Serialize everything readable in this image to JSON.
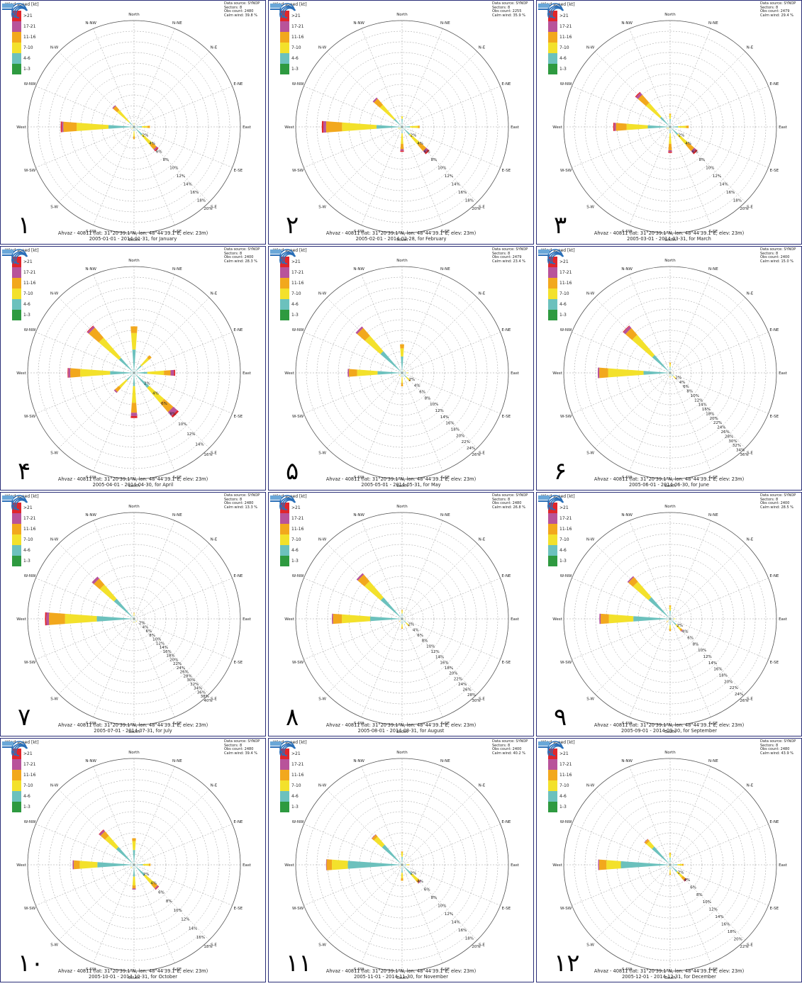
{
  "legend": {
    "title": "Wind speed [kt]",
    "classes": [
      {
        "label": ">21",
        "color": "#e0262b"
      },
      {
        "label": "17-21",
        "color": "#b8539a"
      },
      {
        "label": "11-16",
        "color": "#f2a81d"
      },
      {
        "label": "7-10",
        "color": "#f3e12b"
      },
      {
        "label": "4-6",
        "color": "#6cc1bd"
      },
      {
        "label": "1-3",
        "color": "#2e9a40"
      }
    ]
  },
  "directions": [
    "North",
    "N-NE",
    "N-E",
    "E-NE",
    "East",
    "E-SE",
    "S-E",
    "S-SE",
    "South",
    "S-SW",
    "S-W",
    "W-SW",
    "West",
    "W-NW",
    "N-W",
    "N-NW"
  ],
  "station": "Ahvaz - 40811 (lat: 31°20'39.1\"N, lon: 48°44'39.1\"E, elev: 23m)",
  "data_source_label": "Data source: SYNOP",
  "sectors_label": "Sectors: 8",
  "panels": [
    {
      "num": "١",
      "obs": "Obs count: 2480",
      "calm": "Calm wind: 39.8 %",
      "date": "2005-01-01 - 2014-01-31, for January"
    },
    {
      "num": "٢",
      "obs": "Obs count: 2255",
      "calm": "Calm wind: 35.9 %",
      "date": "2005-02-01 - 2014-02-28, for February"
    },
    {
      "num": "٣",
      "obs": "Obs count: 2479",
      "calm": "Calm wind: 29.4 %",
      "date": "2005-03-01 - 2014-03-31, for March"
    },
    {
      "num": "۴",
      "obs": "Obs count: 2400",
      "calm": "Calm wind: 28.3 %",
      "date": "2005-04-01 - 2014-04-30, for April"
    },
    {
      "num": "۵",
      "obs": "Obs count: 2479",
      "calm": "Calm wind: 23.4 %",
      "date": "2005-05-01 - 2014-05-31, for May"
    },
    {
      "num": "۶",
      "obs": "Obs count: 2400",
      "calm": "Calm wind: 15.0 %",
      "date": "2005-06-01 - 2014-06-30, for June"
    },
    {
      "num": "٧",
      "obs": "Obs count: 2480",
      "calm": "Calm wind: 13.3 %",
      "date": "2005-07-01 - 2014-07-31, for July"
    },
    {
      "num": "٨",
      "obs": "Obs count: 2480",
      "calm": "Calm wind: 26.8 %",
      "date": "2005-08-01 - 2014-08-31, for August"
    },
    {
      "num": "٩",
      "obs": "Obs count: 2400",
      "calm": "Calm wind: 28.5 %",
      "date": "2005-09-01 - 2014-09-30, for September"
    },
    {
      "num": "١٠",
      "obs": "Obs count: 2480",
      "calm": "Calm wind: 39.4 %",
      "date": "2005-10-01 - 2014-10-31, for October"
    },
    {
      "num": "١١",
      "obs": "Obs count: 2400",
      "calm": "Calm wind: 40.2 %",
      "date": "2005-11-01 - 2014-11-30, for November"
    },
    {
      "num": "١٢",
      "obs": "Obs count: 2480",
      "calm": "Calm wind: 43.9 %",
      "date": "2005-12-01 - 2014-12-31, for December"
    }
  ],
  "chart_data": [
    {
      "type": "wind-rose",
      "title": "January",
      "rmax": 20,
      "ticks": [
        "2%",
        "4%",
        "6%",
        "8%",
        "10%",
        "12%",
        "14%",
        "16%",
        "18%",
        "20%"
      ],
      "sectors": {
        "North": [
          0,
          0.3,
          0.4,
          0,
          0,
          0
        ],
        "East": [
          0,
          1.5,
          1,
          0.5,
          0,
          0
        ],
        "S-E": [
          0.1,
          2,
          2.5,
          1,
          0.3,
          0.2
        ],
        "South": [
          0,
          0.8,
          1,
          0.5,
          0,
          0
        ],
        "W-SW": [
          0,
          0.3,
          0.2,
          0,
          0,
          0
        ],
        "West": [
          0.3,
          4.5,
          6,
          2.5,
          0.3,
          0.2
        ],
        "N-W": [
          0,
          1.2,
          3,
          1,
          0.2,
          0
        ],
        "S-W": [
          0,
          0.3,
          0.2,
          0,
          0,
          0
        ]
      }
    },
    {
      "type": "wind-rose",
      "title": "February",
      "rmax": 20,
      "ticks": [
        "2%",
        "4%",
        "6%",
        "8%",
        "10%",
        "12%",
        "14%",
        "16%",
        "18%",
        "20%"
      ],
      "sectors": {
        "North": [
          0,
          1.5,
          0.5,
          0,
          0,
          0
        ],
        "East": [
          0,
          1.5,
          1.5,
          0.3,
          0,
          0
        ],
        "S-E": [
          0,
          2,
          2.5,
          1.5,
          0.5,
          0.3
        ],
        "South": [
          0,
          1.2,
          2,
          1,
          0.3,
          0.2
        ],
        "W-SW": [
          0,
          0.5,
          0.3,
          0,
          0,
          0
        ],
        "West": [
          0.3,
          4.5,
          6.5,
          3,
          0.5,
          0.3
        ],
        "N-W": [
          0,
          2,
          3.5,
          1.5,
          0.3,
          0
        ],
        "S-W": [
          0,
          0.3,
          0.3,
          0,
          0,
          0
        ]
      }
    },
    {
      "type": "wind-rose",
      "title": "March",
      "rmax": 20,
      "ticks": [
        "2%",
        "4%",
        "6%",
        "8%",
        "10%",
        "12%",
        "14%",
        "16%",
        "18%",
        "20%"
      ],
      "sectors": {
        "North": [
          0,
          1.5,
          0.8,
          0.2,
          0,
          0
        ],
        "East": [
          0,
          1.5,
          1.5,
          0.5,
          0,
          0
        ],
        "S-E": [
          0,
          2,
          2.5,
          1.5,
          0.5,
          0.3
        ],
        "South": [
          0,
          1.2,
          2,
          1.2,
          0.3,
          0.2
        ],
        "W-SW": [
          0,
          0.3,
          0.3,
          0.1,
          0,
          0
        ],
        "West": [
          0.2,
          4,
          4,
          2,
          0.3,
          0.2
        ],
        "N-W": [
          0,
          2.5,
          3.5,
          2,
          0.5,
          0.2
        ],
        "S-W": [
          0,
          0.3,
          0.3,
          0,
          0,
          0
        ]
      }
    },
    {
      "type": "wind-rose",
      "title": "April",
      "rmax": 16,
      "ticks": [
        "2%",
        "4%",
        "6%",
        "8%",
        "10%",
        "12%",
        "14%",
        "16%"
      ],
      "sectors": {
        "North": [
          0,
          3.5,
          2.5,
          1,
          0,
          0
        ],
        "East": [
          0,
          2,
          2.5,
          1,
          0.5,
          0.2
        ],
        "S-E": [
          0,
          3,
          3,
          1.8,
          0.8,
          0.3
        ],
        "South": [
          0,
          2,
          2.5,
          1.5,
          0.5,
          0.3
        ],
        "S-W": [
          0,
          1.5,
          1.5,
          0.8,
          0.2,
          0
        ],
        "N-E": [
          0,
          1.5,
          1.5,
          0.5,
          0,
          0
        ],
        "West": [
          0.1,
          3.5,
          4.5,
          1.5,
          0.3,
          0.1
        ],
        "N-W": [
          0,
          3,
          4,
          2,
          0.3,
          0.1
        ]
      }
    },
    {
      "type": "wind-rose",
      "title": "May",
      "rmax": 26,
      "ticks": [
        "2%",
        "4%",
        "6%",
        "8%",
        "10%",
        "12%",
        "14%",
        "16%",
        "18%",
        "20%",
        "22%",
        "24%",
        "26%"
      ],
      "sectors": {
        "North": [
          0,
          4,
          2,
          1,
          0,
          0
        ],
        "East": [
          0,
          1,
          0.5,
          0,
          0,
          0
        ],
        "S-E": [
          0,
          1.5,
          1,
          0.3,
          0,
          0
        ],
        "South": [
          0,
          1,
          1.5,
          0.8,
          0,
          0
        ],
        "S-W": [
          0,
          0.5,
          0.5,
          0,
          0,
          0
        ],
        "West": [
          0,
          6,
          5,
          2,
          0.3,
          0
        ],
        "N-W": [
          0,
          7,
          5,
          2.5,
          0.5,
          0
        ],
        "N-E": [
          0,
          0.5,
          0.3,
          0,
          0,
          0
        ]
      }
    },
    {
      "type": "wind-rose",
      "title": "June",
      "rmax": 36,
      "ticks": [
        "2%",
        "4%",
        "6%",
        "8%",
        "10%",
        "12%",
        "14%",
        "16%",
        "18%",
        "20%",
        "22%",
        "24%",
        "26%",
        "28%",
        "30%",
        "32%",
        "34%",
        "36%"
      ],
      "sectors": {
        "North": [
          0,
          2,
          1,
          0.5,
          0,
          0
        ],
        "East": [
          0,
          0.5,
          0.3,
          0,
          0,
          0
        ],
        "S-E": [
          0,
          1.5,
          1,
          0.3,
          0,
          0
        ],
        "South": [
          0,
          1,
          0.5,
          0.2,
          0,
          0
        ],
        "S-W": [
          0,
          0.5,
          0.3,
          0,
          0,
          0
        ],
        "West": [
          0,
          9,
          12,
          3,
          0.5,
          0
        ],
        "N-W": [
          0,
          8,
          9,
          3,
          1,
          0.2
        ],
        "N-E": [
          0,
          0.3,
          0.2,
          0,
          0,
          0
        ]
      }
    },
    {
      "type": "wind-rose",
      "title": "July",
      "rmax": 40,
      "ticks": [
        "2%",
        "4%",
        "6%",
        "8%",
        "10%",
        "12%",
        "14%",
        "16%",
        "18%",
        "20%",
        "22%",
        "24%",
        "26%",
        "28%",
        "30%",
        "32%",
        "34%",
        "36%",
        "38%",
        "40%"
      ],
      "sectors": {
        "North": [
          0,
          1,
          1,
          0.3,
          0,
          0
        ],
        "East": [
          0,
          0.3,
          0.2,
          0,
          0,
          0
        ],
        "S-E": [
          0,
          1,
          0.5,
          0,
          0,
          0
        ],
        "South": [
          0,
          1,
          0.5,
          0,
          0,
          0
        ],
        "S-W": [
          0,
          0.3,
          0.3,
          0,
          0,
          0
        ],
        "West": [
          0,
          14,
          12,
          6,
          1,
          0.5
        ],
        "N-W": [
          0,
          10,
          7,
          3,
          1,
          0
        ],
        "N-E": [
          0,
          0.2,
          0.1,
          0,
          0,
          0
        ]
      }
    },
    {
      "type": "wind-rose",
      "title": "August",
      "rmax": 30,
      "ticks": [
        "2%",
        "4%",
        "6%",
        "8%",
        "10%",
        "12%",
        "14%",
        "16%",
        "18%",
        "20%",
        "22%",
        "24%",
        "26%",
        "28%",
        "30%"
      ],
      "sectors": {
        "North": [
          0,
          1.5,
          0.8,
          0.2,
          0,
          0
        ],
        "East": [
          0,
          0.5,
          0.3,
          0,
          0,
          0
        ],
        "S-E": [
          0,
          1.5,
          1,
          0.3,
          0,
          0
        ],
        "South": [
          0,
          1.5,
          1,
          0.3,
          0,
          0
        ],
        "S-W": [
          0,
          0.5,
          0.5,
          0.2,
          0,
          0
        ],
        "West": [
          0,
          9,
          8,
          2.5,
          0.3,
          0
        ],
        "N-W": [
          0,
          8,
          6,
          2.5,
          0.5,
          0
        ],
        "N-E": [
          0,
          0.2,
          0.1,
          0,
          0,
          0
        ]
      }
    },
    {
      "type": "wind-rose",
      "title": "September",
      "rmax": 26,
      "ticks": [
        "2%",
        "4%",
        "6%",
        "8%",
        "10%",
        "12%",
        "14%",
        "16%",
        "18%",
        "20%",
        "22%",
        "24%",
        "26%"
      ],
      "sectors": {
        "North": [
          0,
          2,
          1,
          0.3,
          0,
          0
        ],
        "East": [
          0,
          0.8,
          0.5,
          0,
          0,
          0
        ],
        "S-E": [
          0,
          2,
          1.5,
          0.5,
          0.2,
          0
        ],
        "South": [
          0,
          1.5,
          1,
          0.5,
          0,
          0
        ],
        "S-W": [
          0,
          0.5,
          0.5,
          0.2,
          0,
          0
        ],
        "West": [
          0,
          9,
          6,
          2,
          0.3,
          0
        ],
        "N-W": [
          0,
          7,
          5,
          1.5,
          0.3,
          0
        ],
        "N-E": [
          0,
          0.2,
          0.1,
          0,
          0,
          0
        ]
      }
    },
    {
      "type": "wind-rose",
      "title": "October",
      "rmax": 18,
      "ticks": [
        "2%",
        "4%",
        "6%",
        "8%",
        "10%",
        "12%",
        "14%",
        "16%",
        "18%"
      ],
      "sectors": {
        "North": [
          0,
          2.5,
          1.5,
          0.5,
          0,
          0
        ],
        "East": [
          0,
          1.5,
          1,
          0.3,
          0,
          0
        ],
        "S-E": [
          0,
          2.5,
          2,
          0.8,
          0.2,
          0.1
        ],
        "South": [
          0,
          2,
          1.5,
          0.5,
          0.2,
          0
        ],
        "S-W": [
          0,
          0.5,
          0.3,
          0,
          0,
          0
        ],
        "West": [
          0.2,
          6,
          3,
          1,
          0.2,
          0
        ],
        "N-W": [
          0,
          4,
          2.5,
          1,
          0.3,
          0.1
        ],
        "N-E": [
          0,
          0.2,
          0.1,
          0,
          0,
          0
        ]
      }
    },
    {
      "type": "wind-rose",
      "title": "November",
      "rmax": 20,
      "ticks": [
        "2%",
        "4%",
        "6%",
        "8%",
        "10%",
        "12%",
        "14%",
        "16%",
        "18%",
        "20%"
      ],
      "sectors": {
        "North": [
          0,
          1.5,
          0.8,
          0.2,
          0,
          0
        ],
        "East": [
          0,
          0.8,
          0.5,
          0.1,
          0,
          0
        ],
        "S-E": [
          0,
          2.5,
          1.5,
          0.5,
          0.2,
          0
        ],
        "South": [
          0,
          1.5,
          1,
          0.5,
          0,
          0
        ],
        "S-W": [
          0,
          0.3,
          0.3,
          0,
          0,
          0
        ],
        "West": [
          0.2,
          10,
          3,
          1,
          0.1,
          0
        ],
        "N-W": [
          0,
          5,
          2,
          0.5,
          0.1,
          0
        ],
        "N-E": [
          0,
          0.2,
          0.1,
          0,
          0,
          0
        ]
      }
    },
    {
      "type": "wind-rose",
      "title": "December",
      "rmax": 22,
      "ticks": [
        "2%",
        "4%",
        "6%",
        "8%",
        "10%",
        "12%",
        "14%",
        "16%",
        "18%",
        "20%",
        "22%"
      ],
      "sectors": {
        "North": [
          0,
          1.5,
          0.8,
          0.2,
          0,
          0
        ],
        "East": [
          0,
          1.5,
          1,
          0.3,
          0,
          0
        ],
        "S-E": [
          0,
          2,
          1.5,
          0.8,
          0.2,
          0.1
        ],
        "South": [
          0,
          1,
          0.8,
          0.3,
          0,
          0
        ],
        "S-W": [
          0,
          0.3,
          0.3,
          0,
          0,
          0
        ],
        "West": [
          0.2,
          10,
          3,
          1.5,
          0.2,
          0
        ],
        "N-W": [
          0,
          5,
          1.5,
          0.5,
          0.1,
          0
        ],
        "N-E": [
          0,
          0.2,
          0.1,
          0,
          0,
          0
        ]
      }
    }
  ]
}
